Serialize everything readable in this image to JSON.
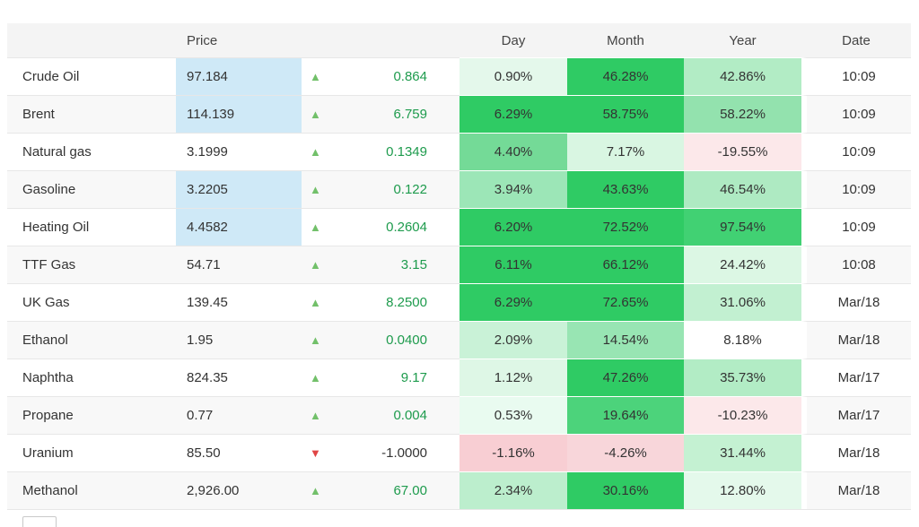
{
  "icons": {
    "up": "▲",
    "down": "▼"
  },
  "colors": {
    "up_arrow": "#72c06a",
    "down_arrow": "#e04545",
    "positive_change_text": "#1e9b4d",
    "neutral_change_text": "#333333",
    "price_highlight": "#cfe9f7",
    "full_green": "#2fcb64",
    "header_bg": "#f4f4f4",
    "stripe_bg": "#f8f8f8"
  },
  "table": {
    "headers": {
      "name": "",
      "price": "Price",
      "arrow": "",
      "change": "",
      "day": "Day",
      "month": "Month",
      "year": "Year",
      "date": "Date"
    },
    "rows": [
      {
        "name": "Crude Oil",
        "price": "97.184",
        "price_highlight": true,
        "direction": "up",
        "change": "0.864",
        "change_color": "#1e9b4d",
        "day": "0.90%",
        "day_bg": "#e4f8eb",
        "month": "46.28%",
        "month_bg": "#2fcb64",
        "year": "42.86%",
        "year_bg": "#b2ecc5",
        "date": "10:09"
      },
      {
        "name": "Brent",
        "price": "114.139",
        "price_highlight": true,
        "direction": "up",
        "change": "6.759",
        "change_color": "#1e9b4d",
        "day": "6.29%",
        "day_bg": "#2fcb64",
        "month": "58.75%",
        "month_bg": "#2fcb64",
        "year": "58.22%",
        "year_bg": "#93e2ae",
        "date": "10:09"
      },
      {
        "name": "Natural gas",
        "price": "3.1999",
        "price_highlight": false,
        "direction": "up",
        "change": "0.1349",
        "change_color": "#1e9b4d",
        "day": "4.40%",
        "day_bg": "#74da97",
        "month": "7.17%",
        "month_bg": "#d9f6e2",
        "year": "-19.55%",
        "year_bg": "#fce8ea",
        "date": "10:09"
      },
      {
        "name": "Gasoline",
        "price": "3.2205",
        "price_highlight": true,
        "direction": "up",
        "change": "0.122",
        "change_color": "#1e9b4d",
        "day": "3.94%",
        "day_bg": "#9ce6b7",
        "month": "43.63%",
        "month_bg": "#2fcb64",
        "year": "46.54%",
        "year_bg": "#aeeac2",
        "date": "10:09"
      },
      {
        "name": "Heating Oil",
        "price": "4.4582",
        "price_highlight": true,
        "direction": "up",
        "change": "0.2604",
        "change_color": "#1e9b4d",
        "day": "6.20%",
        "day_bg": "#2fcb64",
        "month": "72.52%",
        "month_bg": "#2fcb64",
        "year": "97.54%",
        "year_bg": "#41d173",
        "date": "10:09"
      },
      {
        "name": "TTF Gas",
        "price": "54.71",
        "price_highlight": false,
        "direction": "up",
        "change": "3.15",
        "change_color": "#1e9b4d",
        "day": "6.11%",
        "day_bg": "#2fcb64",
        "month": "66.12%",
        "month_bg": "#2fcb64",
        "year": "24.42%",
        "year_bg": "#dcf7e4",
        "date": "10:08"
      },
      {
        "name": "UK Gas",
        "price": "139.45",
        "price_highlight": false,
        "direction": "up",
        "change": "8.2500",
        "change_color": "#1e9b4d",
        "day": "6.29%",
        "day_bg": "#2fcb64",
        "month": "72.65%",
        "month_bg": "#2fcb64",
        "year": "31.06%",
        "year_bg": "#c2f0d1",
        "date": "Mar/18"
      },
      {
        "name": "Ethanol",
        "price": "1.95",
        "price_highlight": false,
        "direction": "up",
        "change": "0.0400",
        "change_color": "#1e9b4d",
        "day": "2.09%",
        "day_bg": "#c9f2d7",
        "month": "14.54%",
        "month_bg": "#98e5b3",
        "year": "8.18%",
        "year_bg": "#ffffff",
        "date": "Mar/18"
      },
      {
        "name": "Naphtha",
        "price": "824.35",
        "price_highlight": false,
        "direction": "up",
        "change": "9.17",
        "change_color": "#1e9b4d",
        "day": "1.12%",
        "day_bg": "#def7e6",
        "month": "47.26%",
        "month_bg": "#2fcb64",
        "year": "35.73%",
        "year_bg": "#b2ecc5",
        "date": "Mar/17"
      },
      {
        "name": "Propane",
        "price": "0.77",
        "price_highlight": false,
        "direction": "up",
        "change": "0.004",
        "change_color": "#1e9b4d",
        "day": "0.53%",
        "day_bg": "#e9fbf0",
        "month": "19.64%",
        "month_bg": "#4cd37b",
        "year": "-10.23%",
        "year_bg": "#fce8ea",
        "date": "Mar/17"
      },
      {
        "name": "Uranium",
        "price": "85.50",
        "price_highlight": false,
        "direction": "down",
        "change": "-1.0000",
        "change_color": "#333333",
        "day": "-1.16%",
        "day_bg": "#f8ced3",
        "month": "-4.26%",
        "month_bg": "#f8d6da",
        "year": "31.44%",
        "year_bg": "#c4f1d2",
        "date": "Mar/18"
      },
      {
        "name": "Methanol",
        "price": "2,926.00",
        "price_highlight": false,
        "direction": "up",
        "change": "67.00",
        "change_color": "#1e9b4d",
        "day": "2.34%",
        "day_bg": "#bceecd",
        "month": "30.16%",
        "month_bg": "#2fcb64",
        "year": "12.80%",
        "year_bg": "#e4f9eb",
        "date": "Mar/18"
      }
    ]
  }
}
